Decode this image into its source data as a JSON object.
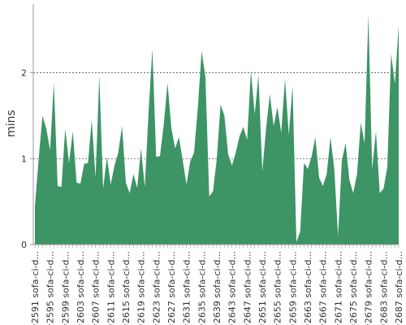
{
  "chart_data": {
    "type": "area",
    "ylabel": "mins",
    "ylim": [
      0,
      2.8
    ],
    "yticks": [
      0,
      1,
      2
    ],
    "grid": "horizontal dashed at y ticks",
    "colors": {
      "area": "#3d9465",
      "grid": "#555555",
      "axis": "#999999"
    },
    "x_start": 2591,
    "x_label_prefix": "#",
    "x_label_suffix": " sofa-ci-d...",
    "x_labeled_every": 4,
    "x_tick_labels": [
      "#2591 sofa-ci-d...",
      "#2595 sofa-ci-d...",
      "#2599 sofa-ci-d...",
      "#2603 sofa-ci-d...",
      "#2607 sofa-ci-d...",
      "#2611 sofa-ci-d...",
      "#2615 sofa-ci-d...",
      "#2619 sofa-ci-d...",
      "#2623 sofa-ci-d...",
      "#2627 sofa-ci-d...",
      "#2631 sofa-ci-d...",
      "#2635 sofa-ci-d...",
      "#2639 sofa-ci-d...",
      "#2643 sofa-ci-d...",
      "#2647 sofa-ci-d...",
      "#2651 sofa-ci-d...",
      "#2655 sofa-ci-d...",
      "#2659 sofa-ci-d...",
      "#2663 sofa-ci-d...",
      "#2667 sofa-ci-d...",
      "#2671 sofa-ci-d...",
      "#2675 sofa-ci-d...",
      "#2679 sofa-ci-d...",
      "#2683 sofa-ci-d...",
      "#2687 sofa-ci-d..."
    ],
    "values": [
      0.45,
      1.0,
      1.5,
      1.35,
      1.1,
      1.88,
      0.68,
      0.67,
      1.35,
      0.95,
      1.32,
      0.72,
      0.71,
      0.94,
      0.95,
      1.45,
      0.78,
      1.97,
      0.65,
      1.02,
      0.7,
      0.92,
      1.07,
      1.38,
      0.72,
      0.6,
      0.82,
      0.66,
      1.12,
      0.67,
      1.55,
      2.28,
      1.02,
      1.03,
      1.4,
      1.88,
      1.36,
      1.12,
      1.25,
      0.98,
      0.7,
      0.97,
      1.07,
      1.6,
      2.25,
      1.95,
      0.56,
      0.62,
      1.0,
      1.63,
      1.5,
      1.05,
      0.92,
      1.07,
      1.26,
      1.37,
      1.22,
      2.02,
      1.52,
      1.97,
      0.85,
      1.35,
      1.75,
      1.38,
      1.6,
      1.3,
      1.93,
      1.28,
      1.85,
      0.03,
      0.15,
      0.95,
      0.88,
      1.02,
      1.25,
      0.78,
      0.68,
      0.82,
      1.25,
      0.88,
      0.1,
      0.98,
      1.18,
      0.75,
      0.6,
      0.82,
      1.42,
      1.18,
      2.68,
      0.88,
      1.32,
      0.6,
      0.65,
      0.9,
      2.22,
      1.87,
      2.55
    ]
  }
}
